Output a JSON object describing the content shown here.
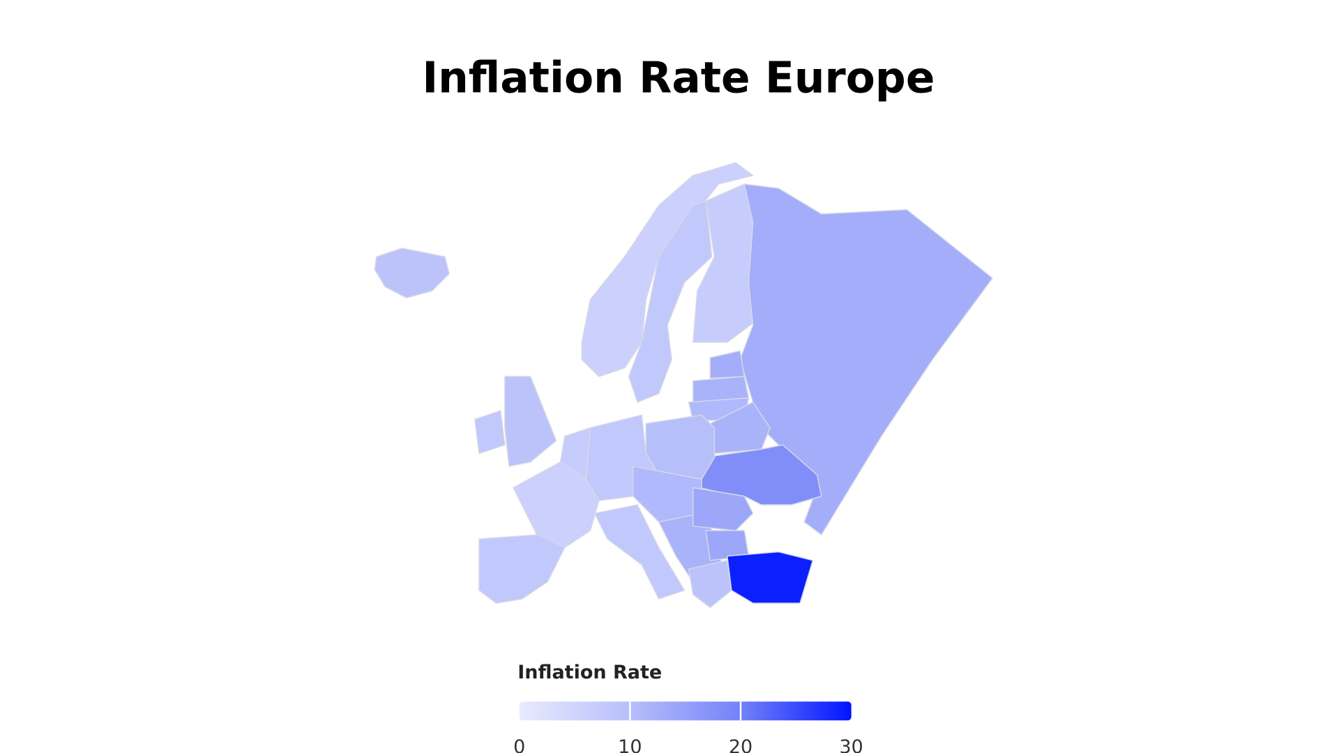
{
  "chart_data": {
    "type": "choropleth",
    "title": "Inflation Rate Europe",
    "values": [
      9,
      6,
      8,
      7,
      13,
      13,
      12,
      11,
      12,
      18,
      10,
      8,
      7,
      6,
      8,
      9,
      8,
      8,
      11,
      12,
      14,
      14,
      9,
      29
    ],
    "colorscale": [
      "#e8eafd",
      "#b7bffb",
      "#7382f8",
      "#0014ff"
    ],
    "colorbar": {
      "title": "Inflation Rate",
      "lim": [
        0,
        30
      ],
      "ticks": [
        0,
        10,
        20,
        30
      ]
    }
  }
}
